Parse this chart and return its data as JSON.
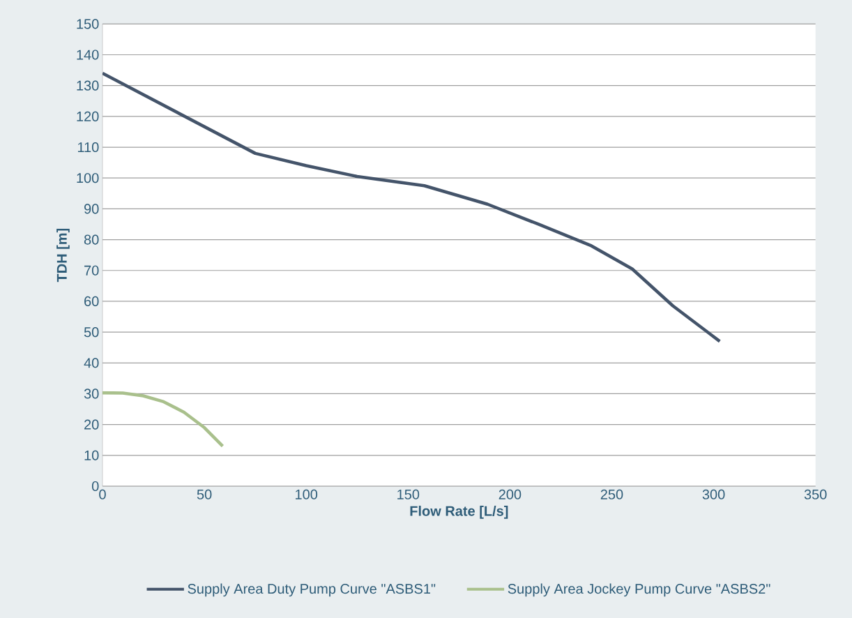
{
  "chart_data": {
    "type": "line",
    "xlabel": "Flow Rate [L/s]",
    "ylabel": "TDH [m]",
    "xlim": [
      0,
      350
    ],
    "xticks": [
      0,
      50,
      100,
      150,
      200,
      250,
      300,
      350
    ],
    "ylim": [
      0,
      150
    ],
    "yticks": [
      0,
      10,
      20,
      30,
      40,
      50,
      60,
      70,
      80,
      90,
      100,
      110,
      120,
      130,
      140,
      150
    ],
    "grid": "y",
    "legend": "bottom",
    "marker": "none",
    "line_style": "solid",
    "series": [
      {
        "name": "Supply Area Duty Pump Curve \"ASBS1\"",
        "color": "#44546a",
        "x": [
          0,
          75,
          100,
          125,
          158,
          189,
          214,
          240,
          260,
          280,
          303
        ],
        "values": [
          134,
          108,
          104,
          100.5,
          97.5,
          91.5,
          85,
          78,
          70.5,
          58.5,
          47
        ]
      },
      {
        "name": "Supply Area Jockey Pump Curve \"ASBS2\"",
        "color": "#a9c08c",
        "x": [
          0,
          10,
          20,
          30,
          40,
          50,
          59
        ],
        "values": [
          30.3,
          30.2,
          29.3,
          27.4,
          24,
          19,
          13
        ]
      }
    ]
  }
}
